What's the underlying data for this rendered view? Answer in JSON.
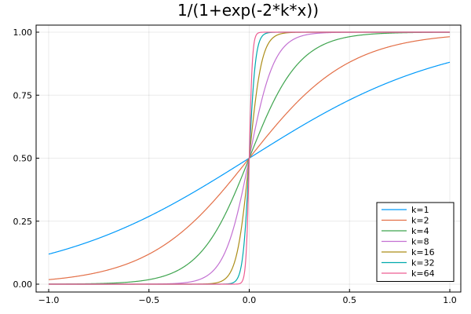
{
  "chart_data": {
    "type": "line",
    "title": "1/(1+exp(-2*k*x))",
    "xlabel": "",
    "ylabel": "",
    "xlim": [
      -1.0,
      1.0
    ],
    "ylim": [
      0.0,
      1.0
    ],
    "x_ticks": [
      "-1.0",
      "-0.5",
      "0.0",
      "0.5",
      "1.0"
    ],
    "x_tick_values": [
      -1.0,
      -0.5,
      0.0,
      0.5,
      1.0
    ],
    "y_ticks": [
      "0.00",
      "0.25",
      "0.50",
      "0.75",
      "1.00"
    ],
    "y_tick_values": [
      0.0,
      0.25,
      0.5,
      0.75,
      1.0
    ],
    "grid": true,
    "legend_position": "bottom-right",
    "function": "1/(1+exp(-2*k*x))",
    "series": [
      {
        "name": "k=1",
        "k": 1,
        "color": "#009AFA"
      },
      {
        "name": "k=2",
        "k": 2,
        "color": "#E36F47"
      },
      {
        "name": "k=4",
        "k": 4,
        "color": "#3EA44E"
      },
      {
        "name": "k=8",
        "k": 8,
        "color": "#C371D2"
      },
      {
        "name": "k=16",
        "k": 16,
        "color": "#AC8D18"
      },
      {
        "name": "k=32",
        "k": 32,
        "color": "#00A9AD"
      },
      {
        "name": "k=64",
        "k": 64,
        "color": "#ED5D92"
      }
    ]
  }
}
